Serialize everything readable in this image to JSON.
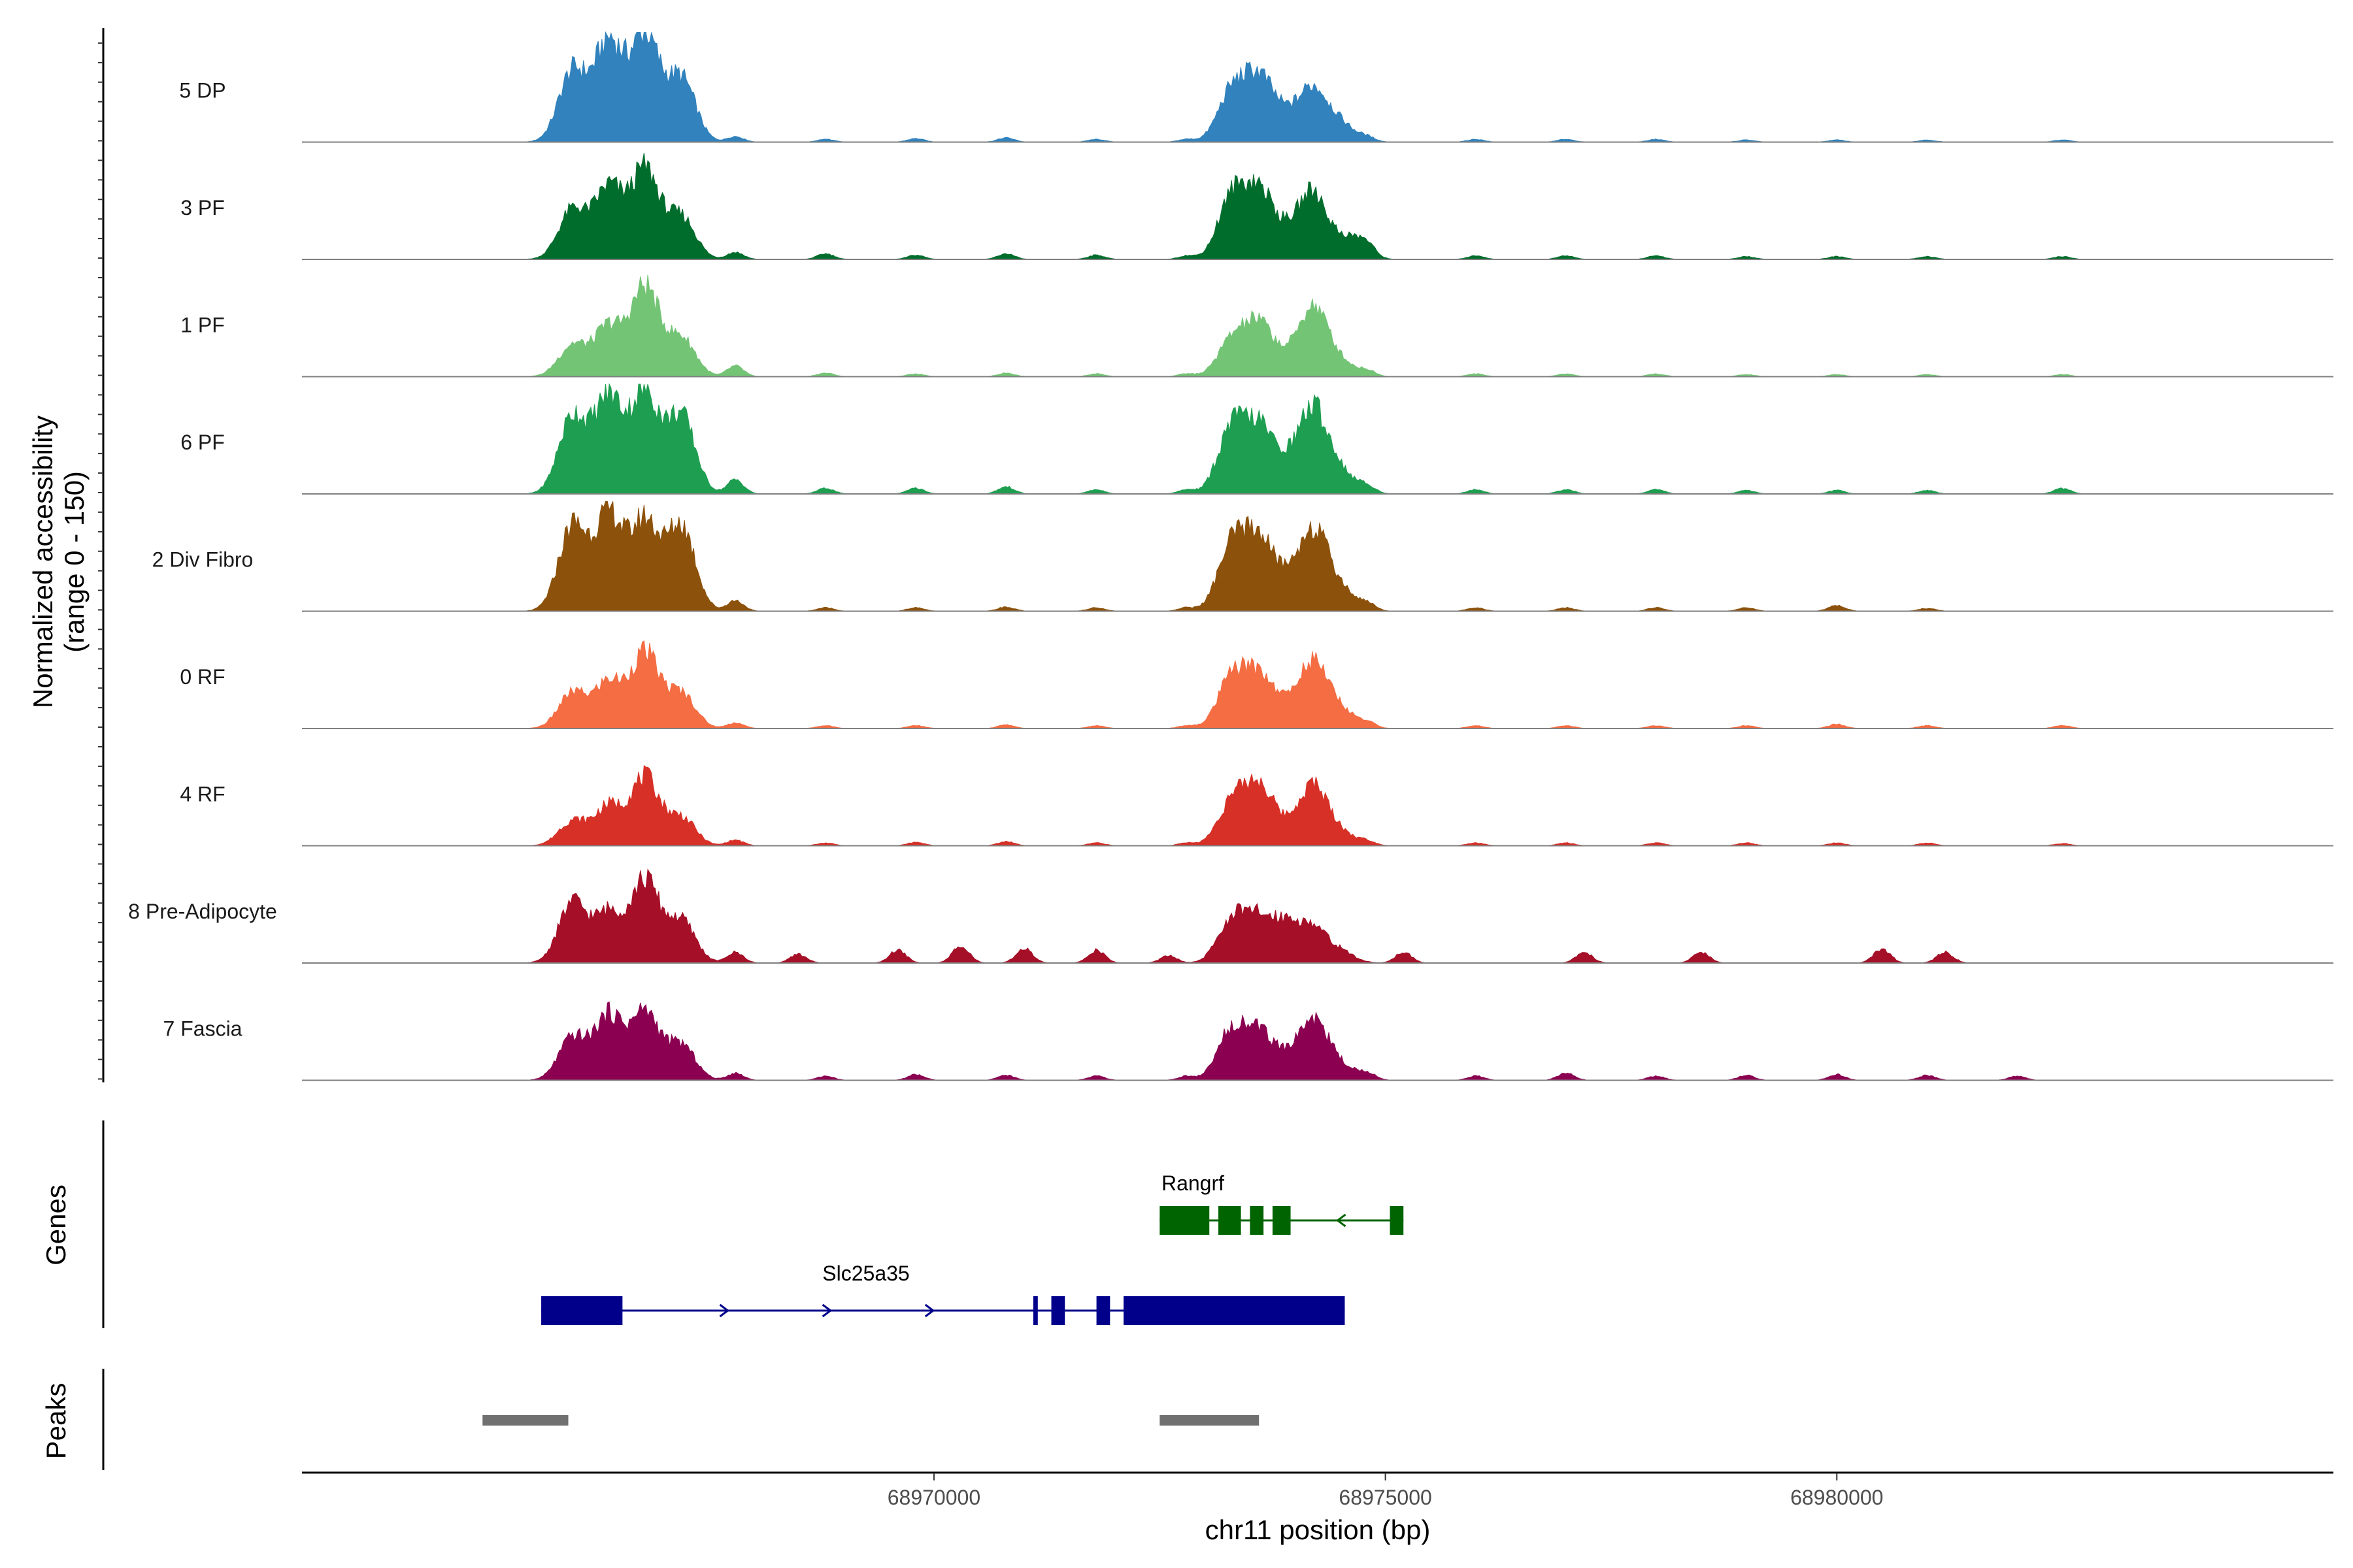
{
  "chart_data": {
    "type": "area",
    "title": "",
    "ylabel": [
      "Normalized accessibility",
      "(range 0 - 150)"
    ],
    "xlabel": "chr11 position (bp)",
    "xlim": [
      68963000,
      68985500
    ],
    "ylim": [
      0,
      150
    ],
    "xticks": [
      68970000,
      68975000,
      68980000
    ],
    "xtick_labels": [
      "68970000",
      "68975000",
      "68980000"
    ],
    "region_start": 68965000,
    "region_end": 68983300,
    "tracks": [
      {
        "name": "5 DP",
        "color": "#3182bd",
        "peaks": [
          [
            68966000,
            100
          ],
          [
            68966400,
            140
          ],
          [
            68966800,
            150
          ],
          [
            68967200,
            90
          ],
          [
            68973300,
            70
          ],
          [
            68973600,
            85
          ],
          [
            68973900,
            30
          ],
          [
            68974200,
            72
          ],
          [
            68974500,
            25
          ]
        ],
        "minor": [
          [
            68967800,
            8
          ],
          [
            68968800,
            4
          ],
          [
            68969800,
            5
          ],
          [
            68970800,
            6
          ],
          [
            68971800,
            4
          ],
          [
            68972800,
            4
          ],
          [
            68974800,
            6
          ],
          [
            68976000,
            4
          ],
          [
            68977000,
            4
          ],
          [
            68978000,
            4
          ],
          [
            68979000,
            3
          ],
          [
            68980000,
            3
          ],
          [
            68981000,
            3
          ],
          [
            68982500,
            3
          ]
        ]
      },
      {
        "name": "3 PF",
        "color": "#006d2c",
        "peaks": [
          [
            68966000,
            70
          ],
          [
            68966400,
            100
          ],
          [
            68966800,
            125
          ],
          [
            68967200,
            60
          ],
          [
            68973300,
            85
          ],
          [
            68973600,
            90
          ],
          [
            68973900,
            30
          ],
          [
            68974200,
            92
          ],
          [
            68974600,
            30
          ]
        ],
        "minor": [
          [
            68967800,
            10
          ],
          [
            68968800,
            8
          ],
          [
            68969800,
            6
          ],
          [
            68970800,
            8
          ],
          [
            68971800,
            6
          ],
          [
            68972800,
            5
          ],
          [
            68974800,
            14
          ],
          [
            68976000,
            5
          ],
          [
            68977000,
            5
          ],
          [
            68978000,
            5
          ],
          [
            68979000,
            4
          ],
          [
            68980000,
            4
          ],
          [
            68981000,
            4
          ],
          [
            68982500,
            4
          ]
        ]
      },
      {
        "name": "1 PF",
        "color": "#74c476",
        "peaks": [
          [
            68966000,
            45
          ],
          [
            68966400,
            70
          ],
          [
            68966800,
            125
          ],
          [
            68967200,
            55
          ],
          [
            68973300,
            50
          ],
          [
            68973600,
            70
          ],
          [
            68973900,
            20
          ],
          [
            68974200,
            95
          ],
          [
            68974500,
            20
          ]
        ],
        "minor": [
          [
            68967800,
            15
          ],
          [
            68968800,
            5
          ],
          [
            68969800,
            4
          ],
          [
            68970800,
            5
          ],
          [
            68971800,
            4
          ],
          [
            68972800,
            4
          ],
          [
            68974800,
            8
          ],
          [
            68976000,
            4
          ],
          [
            68977000,
            4
          ],
          [
            68978000,
            4
          ],
          [
            68979000,
            3
          ],
          [
            68980000,
            3
          ],
          [
            68981000,
            3
          ],
          [
            68982500,
            3
          ]
        ]
      },
      {
        "name": "6 PF",
        "color": "#1e9e50",
        "peaks": [
          [
            68966000,
            110
          ],
          [
            68966400,
            135
          ],
          [
            68966800,
            140
          ],
          [
            68967200,
            110
          ],
          [
            68973300,
            90
          ],
          [
            68973600,
            85
          ],
          [
            68973900,
            35
          ],
          [
            68974200,
            115
          ],
          [
            68974500,
            30
          ]
        ],
        "minor": [
          [
            68967800,
            20
          ],
          [
            68968800,
            8
          ],
          [
            68969800,
            8
          ],
          [
            68970800,
            10
          ],
          [
            68971800,
            6
          ],
          [
            68972800,
            6
          ],
          [
            68974800,
            10
          ],
          [
            68976000,
            6
          ],
          [
            68977000,
            6
          ],
          [
            68978000,
            6
          ],
          [
            68979000,
            5
          ],
          [
            68980000,
            5
          ],
          [
            68981000,
            5
          ],
          [
            68982500,
            8
          ]
        ]
      },
      {
        "name": "2 Div Fibro",
        "color": "#8c510a",
        "peaks": [
          [
            68966000,
            120
          ],
          [
            68966400,
            135
          ],
          [
            68966800,
            125
          ],
          [
            68967200,
            120
          ],
          [
            68973300,
            90
          ],
          [
            68973600,
            95
          ],
          [
            68973900,
            35
          ],
          [
            68974200,
            110
          ],
          [
            68974500,
            30
          ]
        ],
        "minor": [
          [
            68967800,
            15
          ],
          [
            68968800,
            5
          ],
          [
            68969800,
            5
          ],
          [
            68970800,
            6
          ],
          [
            68971800,
            5
          ],
          [
            68972800,
            5
          ],
          [
            68974800,
            10
          ],
          [
            68976000,
            5
          ],
          [
            68977000,
            5
          ],
          [
            68978000,
            5
          ],
          [
            68979000,
            5
          ],
          [
            68980000,
            8
          ],
          [
            68981000,
            4
          ]
        ]
      },
      {
        "name": "0 RF",
        "color": "#f46d43",
        "peaks": [
          [
            68966000,
            50
          ],
          [
            68966400,
            65
          ],
          [
            68966800,
            105
          ],
          [
            68967200,
            50
          ],
          [
            68973300,
            70
          ],
          [
            68973600,
            70
          ],
          [
            68973900,
            25
          ],
          [
            68974200,
            90
          ],
          [
            68974500,
            25
          ]
        ],
        "minor": [
          [
            68967800,
            8
          ],
          [
            68968800,
            4
          ],
          [
            68969800,
            4
          ],
          [
            68970800,
            5
          ],
          [
            68971800,
            4
          ],
          [
            68972800,
            4
          ],
          [
            68974800,
            8
          ],
          [
            68976000,
            4
          ],
          [
            68977000,
            4
          ],
          [
            68978000,
            4
          ],
          [
            68979000,
            4
          ],
          [
            68980000,
            6
          ],
          [
            68981000,
            4
          ],
          [
            68982500,
            4
          ]
        ]
      },
      {
        "name": "4 RF",
        "color": "#d73027",
        "peaks": [
          [
            68966000,
            35
          ],
          [
            68966400,
            55
          ],
          [
            68966800,
            95
          ],
          [
            68967200,
            40
          ],
          [
            68973300,
            60
          ],
          [
            68973600,
            80
          ],
          [
            68973900,
            20
          ],
          [
            68974200,
            82
          ],
          [
            68974500,
            18
          ]
        ],
        "minor": [
          [
            68967800,
            8
          ],
          [
            68968800,
            4
          ],
          [
            68969800,
            5
          ],
          [
            68970800,
            6
          ],
          [
            68971800,
            4
          ],
          [
            68972800,
            4
          ],
          [
            68974800,
            6
          ],
          [
            68976000,
            4
          ],
          [
            68977000,
            4
          ],
          [
            68978000,
            4
          ],
          [
            68979000,
            4
          ],
          [
            68980000,
            4
          ],
          [
            68981000,
            4
          ],
          [
            68982500,
            3
          ]
        ]
      },
      {
        "name": "8 Pre-Adipocyte",
        "color": "#a50f27",
        "peaks": [
          [
            68966000,
            85
          ],
          [
            68966400,
            70
          ],
          [
            68966800,
            115
          ],
          [
            68967200,
            60
          ],
          [
            68973300,
            60
          ],
          [
            68973600,
            55
          ],
          [
            68973900,
            50
          ],
          [
            68974200,
            45
          ],
          [
            68974500,
            15
          ]
        ],
        "minor": [
          [
            68967800,
            15
          ],
          [
            68968500,
            12
          ],
          [
            68969600,
            18
          ],
          [
            68970300,
            25
          ],
          [
            68971000,
            20
          ],
          [
            68971800,
            18
          ],
          [
            68972600,
            10
          ],
          [
            68975200,
            15
          ],
          [
            68977200,
            15
          ],
          [
            68978500,
            15
          ],
          [
            68980500,
            20
          ],
          [
            68981200,
            15
          ]
        ]
      },
      {
        "name": "7 Fascia",
        "color": "#8b0050",
        "peaks": [
          [
            68966000,
            60
          ],
          [
            68966400,
            90
          ],
          [
            68966800,
            95
          ],
          [
            68967200,
            50
          ],
          [
            68973300,
            70
          ],
          [
            68973600,
            60
          ],
          [
            68973900,
            25
          ],
          [
            68974200,
            82
          ],
          [
            68974500,
            20
          ]
        ],
        "minor": [
          [
            68967800,
            10
          ],
          [
            68968800,
            6
          ],
          [
            68969800,
            8
          ],
          [
            68970800,
            7
          ],
          [
            68971800,
            6
          ],
          [
            68972800,
            6
          ],
          [
            68974800,
            10
          ],
          [
            68976000,
            6
          ],
          [
            68977000,
            10
          ],
          [
            68978000,
            6
          ],
          [
            68979000,
            7
          ],
          [
            68980000,
            8
          ],
          [
            68981000,
            7
          ],
          [
            68982000,
            6
          ]
        ]
      }
    ],
    "genes": [
      {
        "name": "Rangrf",
        "strand": "-",
        "color": "#006400",
        "start": 68972500,
        "end": 68975200,
        "exons": [
          [
            68972500,
            68973050
          ],
          [
            68973150,
            68973400
          ],
          [
            68973500,
            68973650
          ],
          [
            68973750,
            68973950
          ],
          [
            68975050,
            68975200
          ]
        ]
      },
      {
        "name": "Slc25a35",
        "strand": "+",
        "color": "#00008b",
        "start": 68965650,
        "end": 68974550,
        "exons": [
          [
            68965650,
            68966550
          ],
          [
            68971100,
            68971150
          ],
          [
            68971300,
            68971450
          ],
          [
            68971800,
            68971950
          ],
          [
            68972100,
            68974550
          ]
        ]
      }
    ],
    "peaks_track": {
      "label": "Peaks",
      "color": "#707070",
      "regions": [
        [
          68965000,
          68965950
        ],
        [
          68972500,
          68973600
        ]
      ]
    },
    "panel_labels": {
      "genes": "Genes",
      "peaks": "Peaks"
    }
  }
}
